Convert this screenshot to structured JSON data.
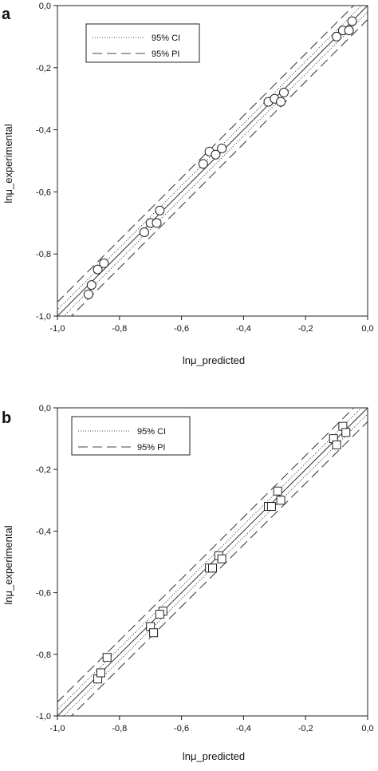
{
  "chart_data": [
    {
      "panel": "a",
      "type": "scatter",
      "marker": "circle",
      "xlabel": "lnμ_predicted",
      "ylabel": "lnμ_experimental",
      "xlim": [
        -1.0,
        0.0
      ],
      "ylim": [
        -1.0,
        0.0
      ],
      "xticks": [
        "-1,0",
        "-0,8",
        "-0,6",
        "-0,4",
        "-0,2",
        "0,0"
      ],
      "yticks": [
        "-1,0",
        "-0,8",
        "-0,6",
        "-0,4",
        "-0,2",
        "0,0"
      ],
      "grid": false,
      "legend": {
        "placement": "top-left",
        "entries": [
          "95% CI",
          "95% PI"
        ]
      },
      "ci_half_width": 0.02,
      "pi_half_width": 0.045,
      "points": [
        [
          -0.9,
          -0.93
        ],
        [
          -0.89,
          -0.9
        ],
        [
          -0.87,
          -0.85
        ],
        [
          -0.85,
          -0.83
        ],
        [
          -0.72,
          -0.73
        ],
        [
          -0.7,
          -0.7
        ],
        [
          -0.68,
          -0.7
        ],
        [
          -0.67,
          -0.66
        ],
        [
          -0.53,
          -0.51
        ],
        [
          -0.51,
          -0.47
        ],
        [
          -0.49,
          -0.48
        ],
        [
          -0.47,
          -0.46
        ],
        [
          -0.32,
          -0.31
        ],
        [
          -0.3,
          -0.3
        ],
        [
          -0.28,
          -0.31
        ],
        [
          -0.27,
          -0.28
        ],
        [
          -0.1,
          -0.1
        ],
        [
          -0.08,
          -0.08
        ],
        [
          -0.06,
          -0.08
        ],
        [
          -0.05,
          -0.05
        ]
      ]
    },
    {
      "panel": "b",
      "type": "scatter",
      "marker": "square",
      "xlabel": "lnμ_predicted",
      "ylabel": "lnμ_experimental",
      "xlim": [
        -1.0,
        0.0
      ],
      "ylim": [
        -1.0,
        0.0
      ],
      "xticks": [
        "-1,0",
        "-0,8",
        "-0,6",
        "-0,4",
        "-0,2",
        "0,0"
      ],
      "yticks": [
        "-1,0",
        "-0,8",
        "-0,6",
        "-0,4",
        "-0,2",
        "0,0"
      ],
      "grid": false,
      "legend": {
        "placement": "top-left",
        "entries": [
          "95% CI",
          "95% PI"
        ]
      },
      "ci_half_width": 0.02,
      "pi_half_width": 0.045,
      "points": [
        [
          -0.87,
          -0.88
        ],
        [
          -0.86,
          -0.86
        ],
        [
          -0.84,
          -0.81
        ],
        [
          -0.7,
          -0.71
        ],
        [
          -0.69,
          -0.73
        ],
        [
          -0.66,
          -0.66
        ],
        [
          -0.67,
          -0.67
        ],
        [
          -0.51,
          -0.52
        ],
        [
          -0.5,
          -0.52
        ],
        [
          -0.48,
          -0.48
        ],
        [
          -0.47,
          -0.49
        ],
        [
          -0.32,
          -0.32
        ],
        [
          -0.31,
          -0.32
        ],
        [
          -0.29,
          -0.27
        ],
        [
          -0.28,
          -0.3
        ],
        [
          -0.11,
          -0.1
        ],
        [
          -0.1,
          -0.12
        ],
        [
          -0.08,
          -0.06
        ],
        [
          -0.07,
          -0.08
        ]
      ]
    }
  ]
}
